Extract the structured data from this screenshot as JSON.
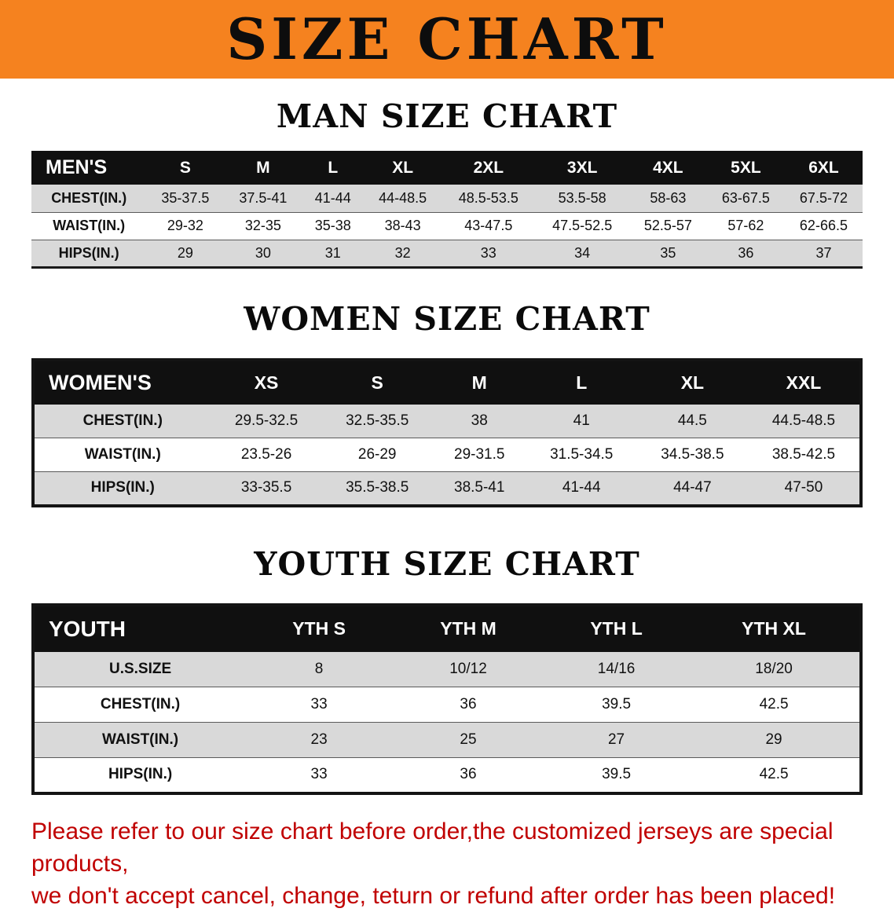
{
  "banner": {
    "title": "SIZE CHART"
  },
  "sections": [
    {
      "heading": "MAN SIZE CHART",
      "table": {
        "header": [
          "MEN'S",
          "S",
          "M",
          "L",
          "XL",
          "2XL",
          "3XL",
          "4XL",
          "5XL",
          "6XL"
        ],
        "rows": [
          [
            "CHEST(IN.)",
            "35-37.5",
            "37.5-41",
            "41-44",
            "44-48.5",
            "48.5-53.5",
            "53.5-58",
            "58-63",
            "63-67.5",
            "67.5-72"
          ],
          [
            "WAIST(IN.)",
            "29-32",
            "32-35",
            "35-38",
            "38-43",
            "43-47.5",
            "47.5-52.5",
            "52.5-57",
            "57-62",
            "62-66.5"
          ],
          [
            "HIPS(IN.)",
            "29",
            "30",
            "31",
            "32",
            "33",
            "34",
            "35",
            "36",
            "37"
          ]
        ]
      }
    },
    {
      "heading": "WOMEN SIZE CHART",
      "table": {
        "header": [
          "WOMEN'S",
          "XS",
          "S",
          "M",
          "L",
          "XL",
          "XXL"
        ],
        "rows": [
          [
            "CHEST(IN.)",
            "29.5-32.5",
            "32.5-35.5",
            "38",
            "41",
            "44.5",
            "44.5-48.5"
          ],
          [
            "WAIST(IN.)",
            "23.5-26",
            "26-29",
            "29-31.5",
            "31.5-34.5",
            "34.5-38.5",
            "38.5-42.5"
          ],
          [
            "HIPS(IN.)",
            "33-35.5",
            "35.5-38.5",
            "38.5-41",
            "41-44",
            "44-47",
            "47-50"
          ]
        ]
      }
    },
    {
      "heading": "YOUTH SIZE CHART",
      "table": {
        "header": [
          "YOUTH",
          "YTH S",
          "YTH M",
          "YTH L",
          "YTH XL"
        ],
        "rows": [
          [
            "U.S.SIZE",
            "8",
            "10/12",
            "14/16",
            "18/20"
          ],
          [
            "CHEST(IN.)",
            "33",
            "36",
            "39.5",
            "42.5"
          ],
          [
            "WAIST(IN.)",
            "23",
            "25",
            "27",
            "29"
          ],
          [
            "HIPS(IN.)",
            "33",
            "36",
            "39.5",
            "42.5"
          ]
        ]
      }
    }
  ],
  "footer": {
    "line1": "Please refer to our size chart before order,the customized jerseys are special products,",
    "line2": "we don't accept cancel, change, teturn or refund after order has been placed!"
  },
  "colors": {
    "banner_orange": "#F5821F",
    "header_black": "#101010",
    "stripe_gray": "#D9D9D9",
    "disclaimer_red": "#C00000"
  }
}
